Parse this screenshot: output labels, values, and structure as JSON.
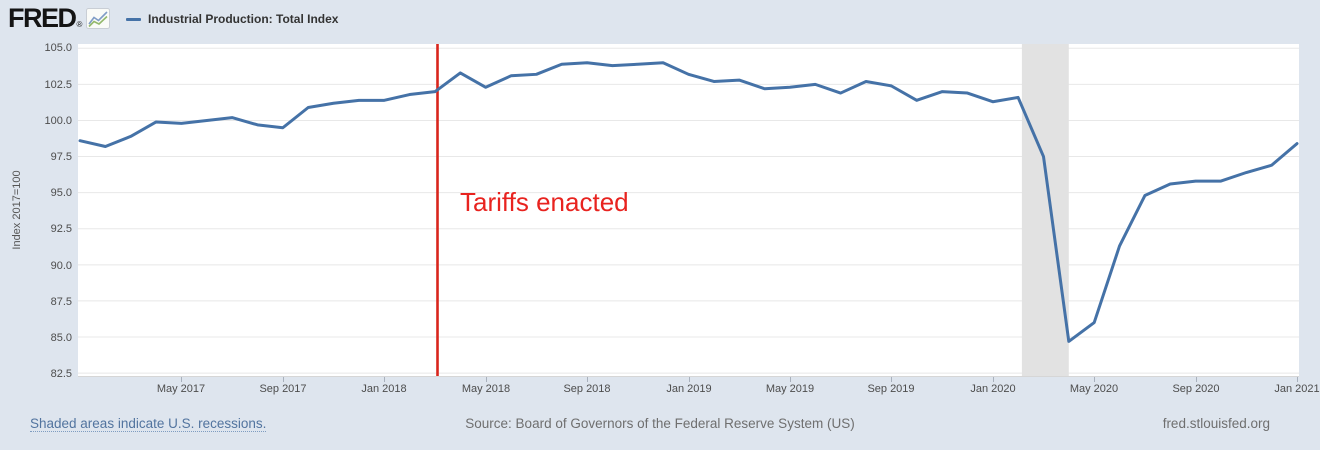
{
  "header": {
    "brand": "FRED",
    "registered_mark": "®",
    "legend": {
      "label": "Industrial Production: Total Index",
      "line_color": "#4572a7"
    }
  },
  "chart_data": {
    "type": "line",
    "title": "Industrial Production: Total Index",
    "ylabel": "Index 2017=100",
    "xlabel": "",
    "grid": "horizontal",
    "legend_position": "top-left-header",
    "ylim": [
      82.3,
      105.3
    ],
    "yticks": [
      "105.0",
      "102.5",
      "100.0",
      "97.5",
      "95.0",
      "92.5",
      "90.0",
      "87.5",
      "85.0",
      "82.5"
    ],
    "ytick_values": [
      105.0,
      102.5,
      100.0,
      97.5,
      95.0,
      92.5,
      90.0,
      87.5,
      85.0,
      82.5
    ],
    "x_span_months": 48,
    "xtick_labels": [
      "May 2017",
      "Sep 2017",
      "Jan 2018",
      "May 2018",
      "Sep 2018",
      "Jan 2019",
      "May 2019",
      "Sep 2019",
      "Jan 2020",
      "May 2020",
      "Sep 2020",
      "Jan 2021"
    ],
    "xtick_month_index": [
      4,
      8,
      12,
      16,
      20,
      24,
      28,
      32,
      36,
      40,
      44,
      48
    ],
    "x": [
      "Jan 2017",
      "Feb 2017",
      "Mar 2017",
      "Apr 2017",
      "May 2017",
      "Jun 2017",
      "Jul 2017",
      "Aug 2017",
      "Sep 2017",
      "Oct 2017",
      "Nov 2017",
      "Dec 2017",
      "Jan 2018",
      "Feb 2018",
      "Mar 2018",
      "Apr 2018",
      "May 2018",
      "Jun 2018",
      "Jul 2018",
      "Aug 2018",
      "Sep 2018",
      "Oct 2018",
      "Nov 2018",
      "Dec 2018",
      "Jan 2019",
      "Feb 2019",
      "Mar 2019",
      "Apr 2019",
      "May 2019",
      "Jun 2019",
      "Jul 2019",
      "Aug 2019",
      "Sep 2019",
      "Oct 2019",
      "Nov 2019",
      "Dec 2019",
      "Jan 2020",
      "Feb 2020",
      "Mar 2020",
      "Apr 2020",
      "May 2020",
      "Jun 2020",
      "Jul 2020",
      "Aug 2020",
      "Sep 2020",
      "Oct 2020",
      "Nov 2020",
      "Dec 2020",
      "Jan 2021"
    ],
    "series": [
      {
        "name": "Industrial Production: Total Index",
        "color": "#4572a7",
        "values": [
          98.6,
          98.2,
          98.9,
          99.9,
          99.8,
          100.0,
          100.2,
          99.7,
          99.5,
          100.9,
          101.2,
          101.4,
          101.4,
          101.8,
          102.0,
          103.3,
          102.3,
          103.1,
          103.2,
          103.9,
          104.0,
          103.8,
          103.9,
          104.0,
          103.2,
          102.7,
          102.8,
          102.2,
          102.3,
          102.5,
          101.9,
          102.7,
          102.4,
          101.4,
          102.0,
          101.9,
          101.3,
          101.6,
          97.5,
          84.7,
          86.0,
          91.3,
          94.8,
          95.6,
          95.8,
          95.8,
          96.4,
          96.9,
          98.4
        ]
      }
    ],
    "recession_shading": {
      "start": "Feb 2020",
      "end": "Apr 2020",
      "start_month_index": 37.15,
      "end_month_index": 39.0,
      "color": "#e2e2e2"
    },
    "annotation": {
      "text": "Tariffs enacted",
      "text_color": "#e8231f",
      "line_color": "#d9251c",
      "line_month_index": 14.1
    },
    "gridline_color": "#e8e8e8"
  },
  "footer": {
    "recession_note": "Shaded areas indicate U.S. recessions.",
    "source": "Source: Board of Governors of the Federal Reserve System (US)",
    "site": "fred.stlouisfed.org"
  }
}
